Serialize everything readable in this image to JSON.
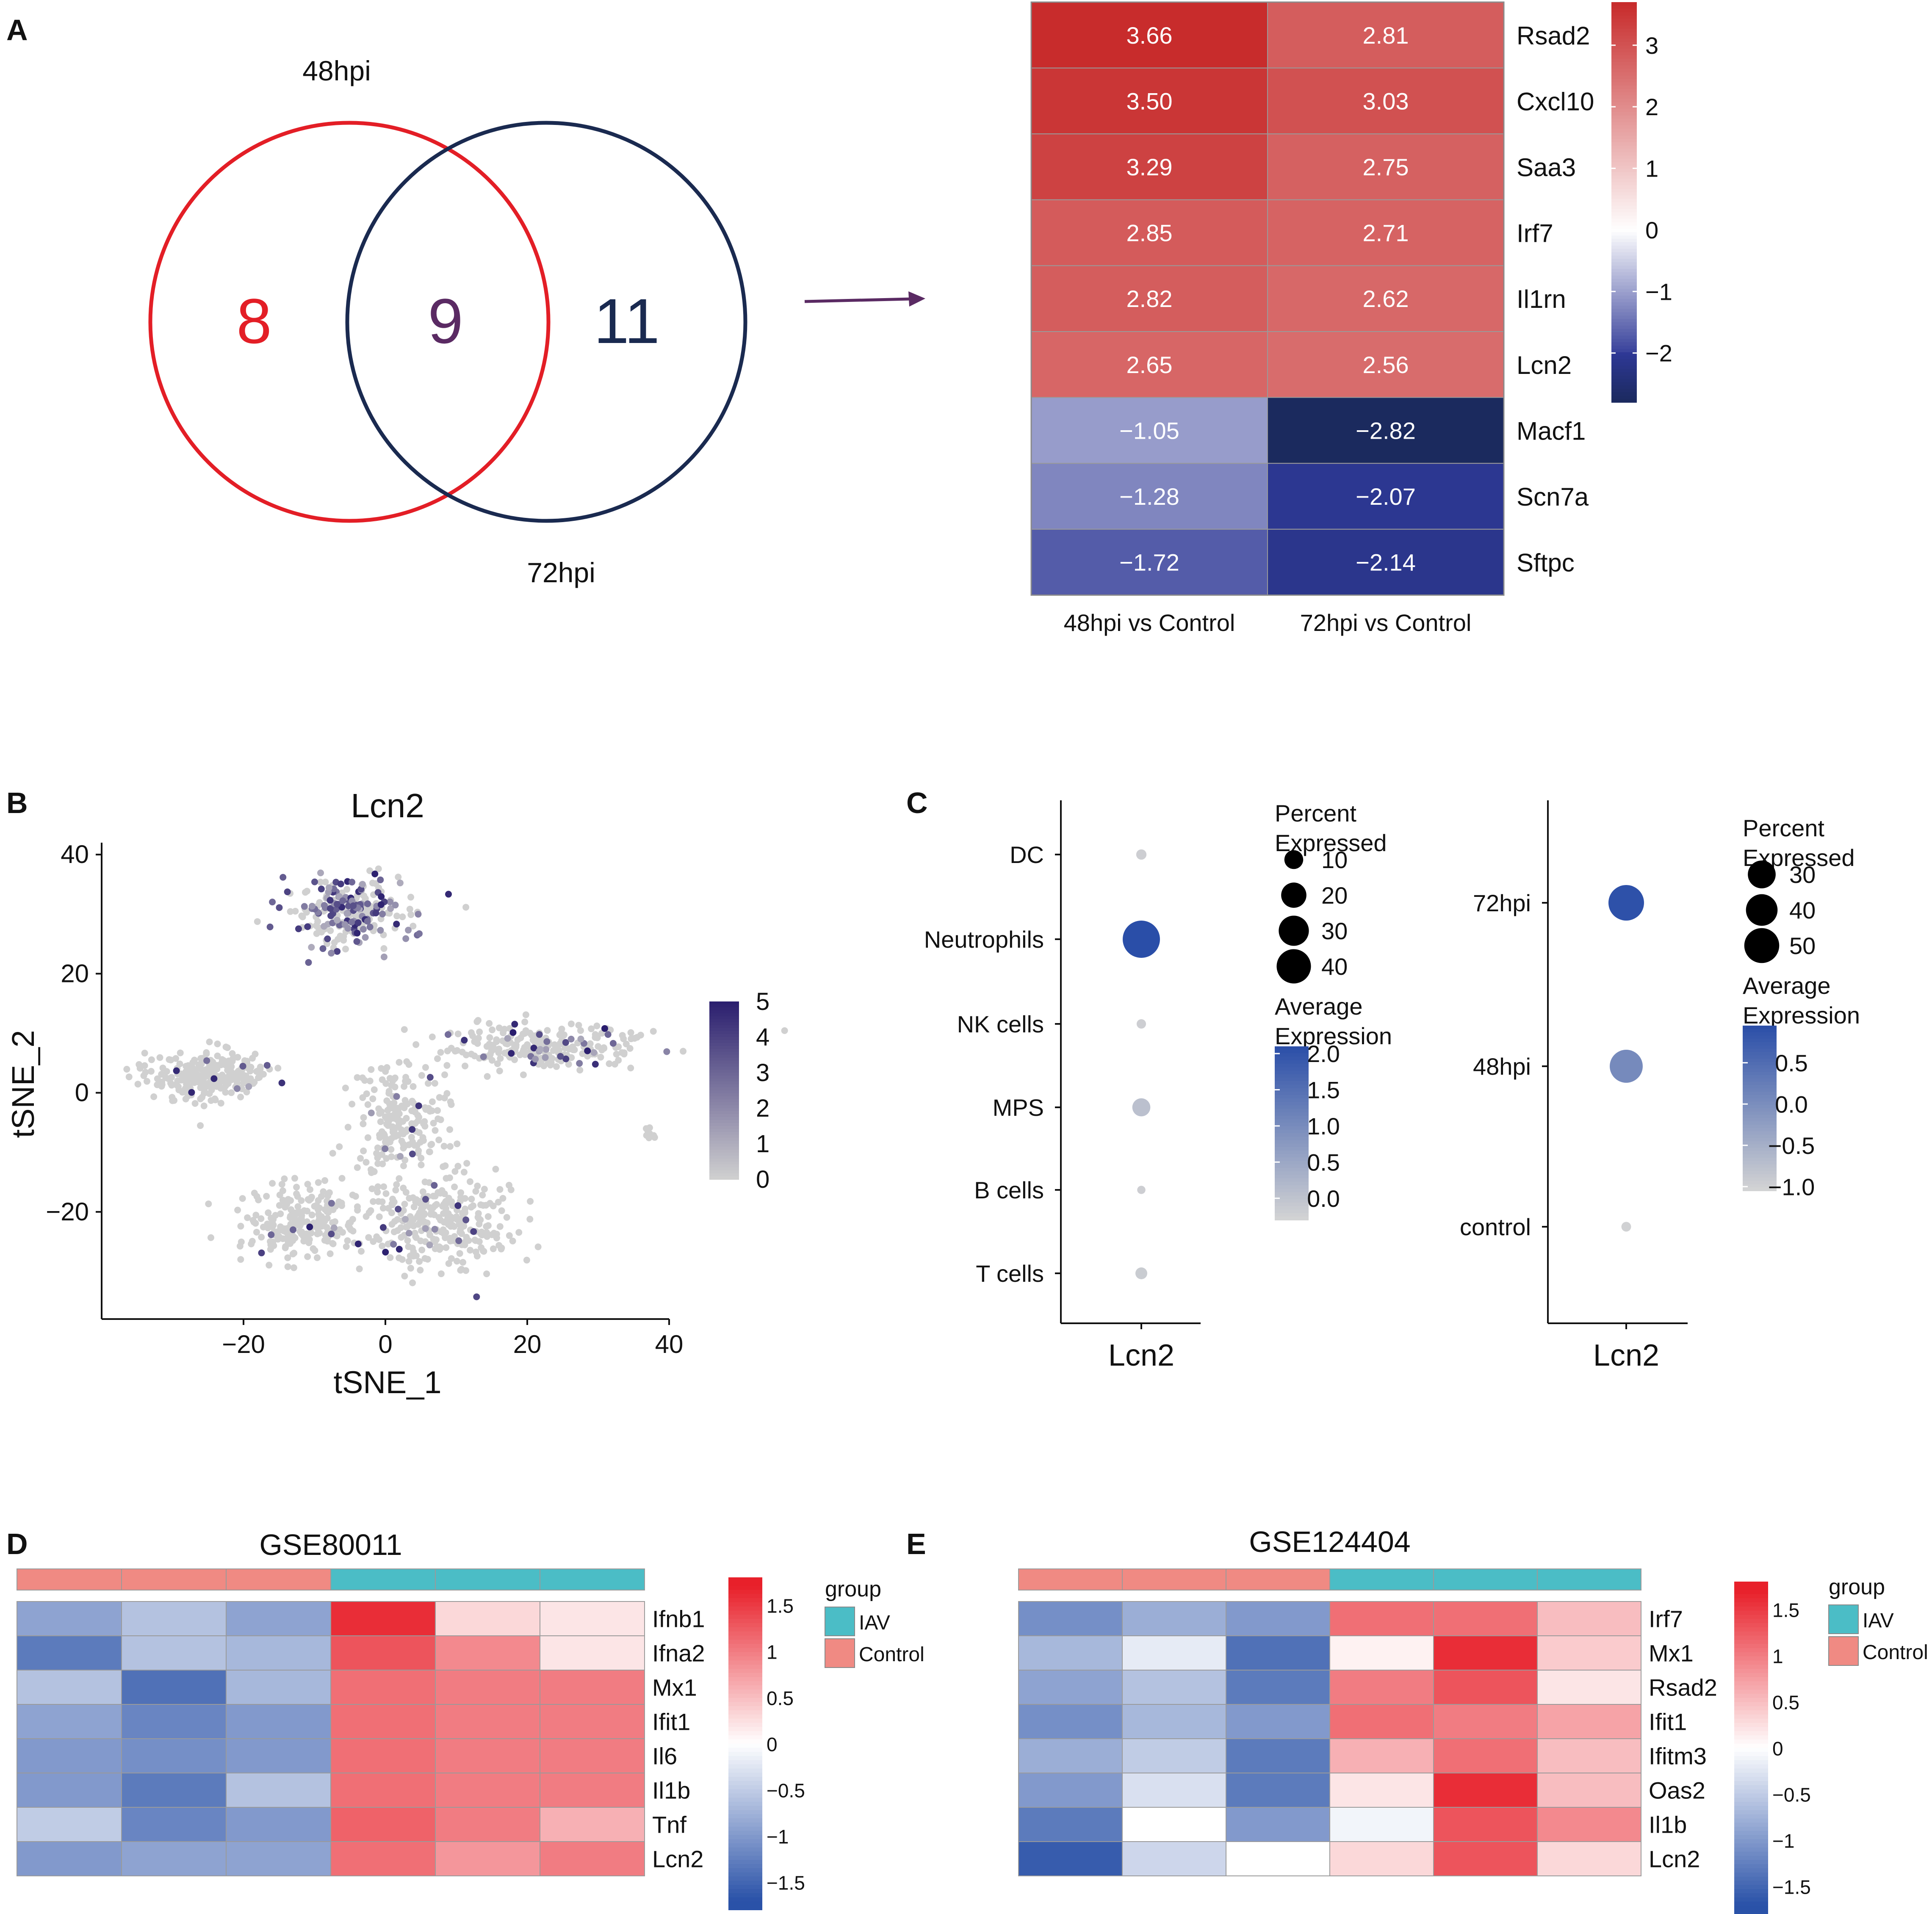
{
  "panel_labels": {
    "a": "A",
    "b": "B",
    "c": "C",
    "d": "D",
    "e": "E"
  },
  "venn": {
    "left_label": "48hpi",
    "right_label": "72hpi",
    "left_only": "8",
    "overlap": "9",
    "right_only": "11",
    "left_color": "#e31e26",
    "right_color": "#1a2a50",
    "overlap_color": "#5a2a63",
    "arrow_color": "#5a2a63"
  },
  "chart_data": [
    {
      "id": "A_heatmap",
      "type": "heatmap",
      "title": "",
      "columns": [
        "48hpi vs Control",
        "72hpi vs Control"
      ],
      "rows": [
        "Rsad2",
        "Cxcl10",
        "Saa3",
        "Irf7",
        "Il1rn",
        "Lcn2",
        "Macf1",
        "Scn7a",
        "Sftpc"
      ],
      "values": [
        [
          3.66,
          2.81
        ],
        [
          3.5,
          3.03
        ],
        [
          3.29,
          2.75
        ],
        [
          2.85,
          2.71
        ],
        [
          2.82,
          2.62
        ],
        [
          2.65,
          2.56
        ],
        [
          -1.05,
          -2.82
        ],
        [
          -1.28,
          -2.07
        ],
        [
          -1.72,
          -2.14
        ]
      ],
      "labels": [
        [
          "3.66",
          "2.81"
        ],
        [
          "3.50",
          "3.03"
        ],
        [
          "3.29",
          "2.75"
        ],
        [
          "2.85",
          "2.71"
        ],
        [
          "2.82",
          "2.62"
        ],
        [
          "2.65",
          "2.56"
        ],
        [
          "−1.05",
          "−2.82"
        ],
        [
          "−1.28",
          "−2.07"
        ],
        [
          "−1.72",
          "−2.14"
        ]
      ],
      "colorbar": {
        "range": [
          -2.8,
          3.7
        ],
        "ticks": [
          3,
          2,
          1,
          0,
          -1,
          -2
        ],
        "tick_labels": [
          "3",
          "2",
          "1",
          "0",
          "−1",
          "−2"
        ],
        "colors": [
          "#1b2a5e",
          "#2e3896",
          "#ffffff",
          "#c72a2a"
        ]
      }
    },
    {
      "id": "B_tsne",
      "type": "scatter",
      "title": "Lcn2",
      "xlabel": "tSNE_1",
      "ylabel": "tSNE_2",
      "xlim": [
        -40,
        40
      ],
      "ylim": [
        -38,
        42
      ],
      "xticks": [
        -20,
        0,
        20,
        40
      ],
      "xtick_labels": [
        "−20",
        "0",
        "20",
        "40"
      ],
      "yticks": [
        40,
        20,
        0,
        -20
      ],
      "ytick_labels": [
        "40",
        "20",
        "0",
        "−20"
      ],
      "colorbar": {
        "range": [
          0,
          5
        ],
        "ticks": [
          5,
          4,
          3,
          2,
          1,
          0
        ],
        "tick_labels": [
          "5",
          "4",
          "3",
          "2",
          "1",
          "0"
        ],
        "low_color": "#d0d0d0",
        "high_color": "#2a1e6e"
      },
      "clusters": [
        {
          "name": "top",
          "center": [
            -5,
            30
          ],
          "spread": [
            7,
            5
          ],
          "count": 260,
          "high_fraction": 0.45
        },
        {
          "name": "left",
          "center": [
            -25,
            3
          ],
          "spread": [
            8,
            3.5
          ],
          "count": 260,
          "high_fraction": 0.03
        },
        {
          "name": "center",
          "center": [
            2,
            -5
          ],
          "spread": [
            6,
            8
          ],
          "count": 200,
          "high_fraction": 0.05
        },
        {
          "name": "right",
          "center": [
            22,
            8
          ],
          "spread": [
            11,
            3
          ],
          "count": 240,
          "high_fraction": 0.15
        },
        {
          "name": "bottom-left",
          "center": [
            -12,
            -22
          ],
          "spread": [
            7,
            6
          ],
          "count": 220,
          "high_fraction": 0.06
        },
        {
          "name": "bottom-right",
          "center": [
            8,
            -22
          ],
          "spread": [
            9,
            6
          ],
          "count": 300,
          "high_fraction": 0.08
        },
        {
          "name": "far-right",
          "center": [
            37,
            -7
          ],
          "spread": [
            1.5,
            1
          ],
          "count": 8,
          "high_fraction": 0.0
        }
      ]
    },
    {
      "id": "C_dot_celltypes",
      "type": "scatter",
      "title": "",
      "xlabel": "Lcn2",
      "categories": [
        "DC",
        "Neutrophils",
        "NK cells",
        "MPS",
        "B cells",
        "T cells"
      ],
      "percent_expressed": [
        2,
        48,
        1.5,
        9,
        1,
        3
      ],
      "average_expression": [
        -0.2,
        2.1,
        -0.2,
        0.05,
        -0.2,
        -0.15
      ],
      "legend_size": {
        "title": "Percent Expressed",
        "values": [
          10,
          20,
          30,
          40
        ],
        "labels": [
          "10",
          "20",
          "30",
          "40"
        ]
      },
      "legend_color": {
        "title": "Average Expression",
        "range": [
          -0.3,
          2.1
        ],
        "ticks": [
          2.0,
          1.5,
          1.0,
          0.5,
          0.0
        ],
        "tick_labels": [
          "2.0",
          "1.5",
          "1.0",
          "0.5",
          "0.0"
        ]
      }
    },
    {
      "id": "C_dot_timepoints",
      "type": "scatter",
      "title": "",
      "xlabel": "Lcn2",
      "categories": [
        "72hpi",
        "48hpi",
        "control"
      ],
      "percent_expressed": [
        52,
        44,
        2
      ],
      "average_expression": [
        0.9,
        0.05,
        -1.0
      ],
      "legend_size": {
        "title": "Percent Expressed",
        "values": [
          30,
          40,
          50
        ],
        "labels": [
          "30",
          "40",
          "50"
        ]
      },
      "legend_color": {
        "title": "Average Expression",
        "range": [
          -1.05,
          0.95
        ],
        "ticks": [
          0.5,
          0.0,
          -0.5,
          -1.0
        ],
        "tick_labels": [
          "0.5",
          "0.0",
          "−0.5",
          "−1.0"
        ]
      }
    },
    {
      "id": "D_heatmap",
      "type": "heatmap",
      "title": "GSE80011",
      "groups": [
        "Control",
        "Control",
        "Control",
        "IAV",
        "IAV",
        "IAV"
      ],
      "rows": [
        "Ifnb1",
        "Ifna2",
        "Mx1",
        "Ifit1",
        "Il6",
        "Il1b",
        "Tnf",
        "Lcn2"
      ],
      "values": [
        [
          -0.9,
          -0.6,
          -0.9,
          1.6,
          0.3,
          0.2
        ],
        [
          -1.3,
          -0.6,
          -0.7,
          1.3,
          0.9,
          0.2
        ],
        [
          -0.6,
          -1.4,
          -0.7,
          1.1,
          1.0,
          1.0
        ],
        [
          -0.9,
          -1.2,
          -1.0,
          1.1,
          1.0,
          1.0
        ],
        [
          -1.0,
          -1.1,
          -1.0,
          1.1,
          1.0,
          1.0
        ],
        [
          -1.0,
          -1.3,
          -0.6,
          1.1,
          1.0,
          1.0
        ],
        [
          -0.5,
          -1.2,
          -1.0,
          1.2,
          1.0,
          0.6
        ],
        [
          -1.0,
          -0.9,
          -0.9,
          1.1,
          0.8,
          1.0
        ]
      ],
      "legend": {
        "title": "group",
        "items": [
          {
            "label": "IAV",
            "color": "#4bbdc6"
          },
          {
            "label": "Control",
            "color": "#f08a83"
          }
        ]
      },
      "colorbar": {
        "range": [
          -1.8,
          1.8
        ],
        "ticks": [
          1.5,
          1,
          0.5,
          0,
          -0.5,
          -1,
          -1.5
        ],
        "tick_labels": [
          "1.5",
          "1",
          "0.5",
          "0",
          "−0.5",
          "−1",
          "−1.5"
        ]
      }
    },
    {
      "id": "E_heatmap",
      "type": "heatmap",
      "title": "GSE124404",
      "groups": [
        "Control",
        "Control",
        "Control",
        "IAV",
        "IAV",
        "IAV"
      ],
      "rows": [
        "Irf7",
        "Mx1",
        "Rsad2",
        "Ifit1",
        "Ifitm3",
        "Oas2",
        "Il1b",
        "Lcn2"
      ],
      "values": [
        [
          -1.1,
          -0.8,
          -1.0,
          1.1,
          1.1,
          0.5
        ],
        [
          -0.7,
          -0.2,
          -1.4,
          0.1,
          1.6,
          0.4
        ],
        [
          -0.9,
          -0.6,
          -1.3,
          1.0,
          1.3,
          0.2
        ],
        [
          -1.1,
          -0.7,
          -1.0,
          1.1,
          1.0,
          0.7
        ],
        [
          -0.8,
          -0.5,
          -1.3,
          0.6,
          1.1,
          0.5
        ],
        [
          -1.0,
          -0.3,
          -1.3,
          0.2,
          1.6,
          0.5
        ],
        [
          -1.3,
          0.0,
          -1.0,
          -0.1,
          1.3,
          0.9
        ],
        [
          -1.6,
          -0.4,
          0.0,
          0.3,
          1.3,
          0.3
        ]
      ],
      "legend": {
        "title": "group",
        "items": [
          {
            "label": "IAV",
            "color": "#4bbdc6"
          },
          {
            "label": "Control",
            "color": "#f08a83"
          }
        ]
      },
      "colorbar": {
        "range": [
          -1.8,
          1.8
        ],
        "ticks": [
          1.5,
          1,
          0.5,
          0,
          -0.5,
          -1,
          -1.5
        ],
        "tick_labels": [
          "1.5",
          "1",
          "0.5",
          "0",
          "−0.5",
          "−1",
          "−1.5"
        ]
      }
    }
  ]
}
